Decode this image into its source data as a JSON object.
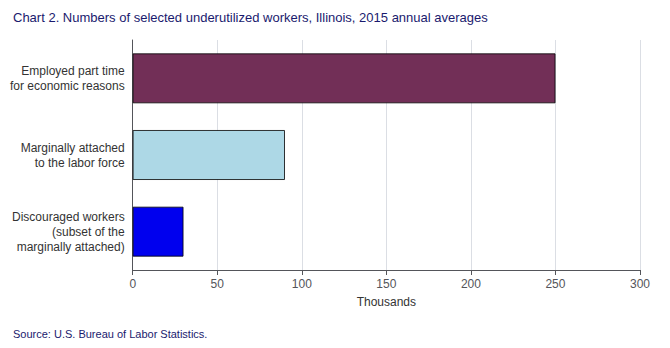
{
  "chart_data": {
    "type": "bar",
    "orientation": "horizontal",
    "title": "Chart 2. Numbers of selected underutilized workers, Illinois, 2015 annual averages",
    "source": "Source: U.S. Bureau of Labor Statistics.",
    "categories": [
      "Discouraged workers\n(subset of the\nmarginally attached)",
      "Marginally attached\nto the labor force",
      "Employed part time\nfor economic reasons"
    ],
    "values": [
      30,
      90,
      250
    ],
    "colors": [
      "#0000EE",
      "#ADD8E6",
      "#722F57"
    ],
    "xlabel": "Thousands",
    "xlim": [
      0,
      300
    ],
    "xticks": [
      0,
      50,
      100,
      150,
      200,
      250,
      300
    ],
    "grid": true
  }
}
